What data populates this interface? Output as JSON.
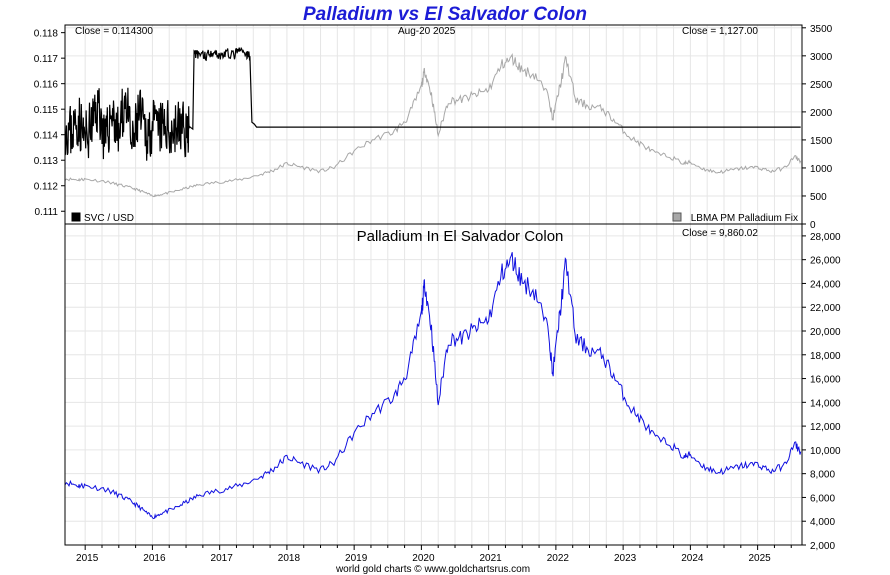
{
  "title": "Palladium vs El Salvador Colon",
  "footer": "world gold charts © www.goldchartsrus.com",
  "colors": {
    "title": "#1c1cd6",
    "svc": "#000000",
    "palladium_usd": "#a8a8a8",
    "palladium_svc": "#1010e0",
    "grid": "#e6e6e6"
  },
  "top_panel": {
    "close_left": "Close = 0.114300",
    "date": "Aug-20  2025",
    "close_right": "Close = 1,127.00",
    "legend_left": "SVC / USD",
    "legend_right": "LBMA PM Palladium Fix"
  },
  "bottom_panel": {
    "title": "Palladium In El Salvador Colon",
    "close": "Close = 9,860.02"
  },
  "chart_data": [
    {
      "type": "line",
      "panel": "top",
      "x_ticks": [
        "2015",
        "2016",
        "2017",
        "2018",
        "2019",
        "2020",
        "2021",
        "2022",
        "2023",
        "2024",
        "2025"
      ],
      "y_left": {
        "ylim": [
          0.1105,
          0.1183
        ],
        "ticks": [
          "0.111",
          "0.112",
          "0.113",
          "0.114",
          "0.115",
          "0.116",
          "0.117",
          "0.118"
        ]
      },
      "y_right": {
        "ylim": [
          0,
          3550
        ],
        "ticks": [
          "0",
          "500",
          "1000",
          "1500",
          "2000",
          "2500",
          "3000",
          "3500"
        ]
      },
      "series": [
        {
          "name": "SVC / USD",
          "axis": "left",
          "x": [
            2014.7,
            2014.8,
            2014.9,
            2015.0,
            2015.1,
            2015.2,
            2015.3,
            2015.4,
            2015.5,
            2015.6,
            2015.7,
            2015.8,
            2015.9,
            2016.0,
            2016.1,
            2016.2,
            2016.3,
            2016.4,
            2016.5,
            2016.55,
            2016.6,
            2016.62,
            2016.7,
            2016.8,
            2016.9,
            2017.0,
            2017.1,
            2017.2,
            2017.3,
            2017.4,
            2017.45,
            2017.48,
            2017.55,
            2018.0,
            2019.0,
            2020.0,
            2021.0,
            2022.0,
            2023.0,
            2024.0,
            2025.0,
            2025.64
          ],
          "y": [
            0.1143,
            0.1141,
            0.1146,
            0.1138,
            0.1144,
            0.1152,
            0.1136,
            0.115,
            0.1139,
            0.1155,
            0.1134,
            0.1149,
            0.114,
            0.1143,
            0.1142,
            0.1143,
            0.1142,
            0.1143,
            0.1142,
            0.1143,
            0.1142,
            0.1171,
            0.1172,
            0.1171,
            0.1173,
            0.1171,
            0.1172,
            0.1171,
            0.1173,
            0.1171,
            0.1171,
            0.1145,
            0.1143,
            0.1143,
            0.1143,
            0.1143,
            0.1143,
            0.1143,
            0.1143,
            0.1143,
            0.1143,
            0.1143
          ]
        },
        {
          "name": "LBMA PM Palladium Fix",
          "axis": "right",
          "x": [
            2014.7,
            2014.9,
            2015.0,
            2015.3,
            2015.5,
            2015.7,
            2015.85,
            2016.0,
            2016.1,
            2016.3,
            2016.5,
            2016.7,
            2017.0,
            2017.3,
            2017.6,
            2017.8,
            2018.0,
            2018.2,
            2018.5,
            2018.7,
            2019.0,
            2019.3,
            2019.6,
            2019.8,
            2020.0,
            2020.05,
            2020.15,
            2020.25,
            2020.4,
            2020.6,
            2020.8,
            2021.0,
            2021.2,
            2021.35,
            2021.5,
            2021.7,
            2021.9,
            2021.95,
            2022.05,
            2022.15,
            2022.3,
            2022.5,
            2022.7,
            2022.9,
            2023.1,
            2023.3,
            2023.5,
            2023.7,
            2023.9,
            2024.0,
            2024.2,
            2024.4,
            2024.6,
            2024.8,
            2025.0,
            2025.2,
            2025.4,
            2025.55,
            2025.64
          ],
          "y": [
            805,
            790,
            800,
            760,
            700,
            640,
            580,
            500,
            520,
            570,
            640,
            700,
            750,
            790,
            880,
            960,
            1080,
            1020,
            940,
            1010,
            1300,
            1520,
            1650,
            1900,
            2450,
            2750,
            2300,
            1580,
            2200,
            2220,
            2300,
            2400,
            2850,
            2950,
            2750,
            2650,
            2250,
            1860,
            2400,
            2950,
            2200,
            2100,
            2050,
            1800,
            1550,
            1400,
            1250,
            1200,
            1080,
            1100,
            980,
            920,
            960,
            1000,
            1010,
            940,
            1000,
            1200,
            1127
          ]
        }
      ]
    },
    {
      "type": "line",
      "panel": "bottom",
      "title": "Palladium In El Salvador Colon",
      "x_ticks": [
        "2015",
        "2016",
        "2017",
        "2018",
        "2019",
        "2020",
        "2021",
        "2022",
        "2023",
        "2024",
        "2025"
      ],
      "ylim": [
        2000,
        29000
      ],
      "y_ticks": [
        "2,000",
        "4,000",
        "6,000",
        "8,000",
        "10,000",
        "12,000",
        "14,000",
        "16,000",
        "18,000",
        "20,000",
        "22,000",
        "24,000",
        "26,000",
        "28,000"
      ],
      "series": [
        {
          "name": "Palladium In El Salvador Colon",
          "x": [
            2014.7,
            2014.9,
            2015.0,
            2015.3,
            2015.5,
            2015.7,
            2015.85,
            2016.0,
            2016.1,
            2016.3,
            2016.5,
            2016.7,
            2017.0,
            2017.3,
            2017.6,
            2017.8,
            2018.0,
            2018.2,
            2018.5,
            2018.7,
            2019.0,
            2019.3,
            2019.6,
            2019.8,
            2020.0,
            2020.05,
            2020.15,
            2020.25,
            2020.4,
            2020.6,
            2020.8,
            2021.0,
            2021.2,
            2021.35,
            2021.5,
            2021.7,
            2021.9,
            2021.95,
            2022.05,
            2022.15,
            2022.3,
            2022.5,
            2022.7,
            2022.9,
            2023.1,
            2023.3,
            2023.5,
            2023.7,
            2023.9,
            2024.0,
            2024.2,
            2024.4,
            2024.6,
            2024.8,
            2025.0,
            2025.2,
            2025.4,
            2025.55,
            2025.64
          ],
          "y": [
            7300,
            7000,
            7000,
            6700,
            6200,
            5600,
            5000,
            4300,
            4600,
            5000,
            5600,
            6200,
            6600,
            7000,
            7700,
            8400,
            9400,
            8900,
            8300,
            8900,
            11400,
            13200,
            14500,
            16700,
            21400,
            24100,
            20100,
            13800,
            19300,
            19400,
            20200,
            21000,
            24900,
            26000,
            24200,
            23200,
            19700,
            16300,
            21000,
            25800,
            19300,
            18400,
            17900,
            15800,
            13600,
            12300,
            10900,
            10500,
            9400,
            9600,
            8600,
            8100,
            8400,
            8700,
            8800,
            8200,
            8700,
            10500,
            9860
          ]
        }
      ]
    }
  ]
}
